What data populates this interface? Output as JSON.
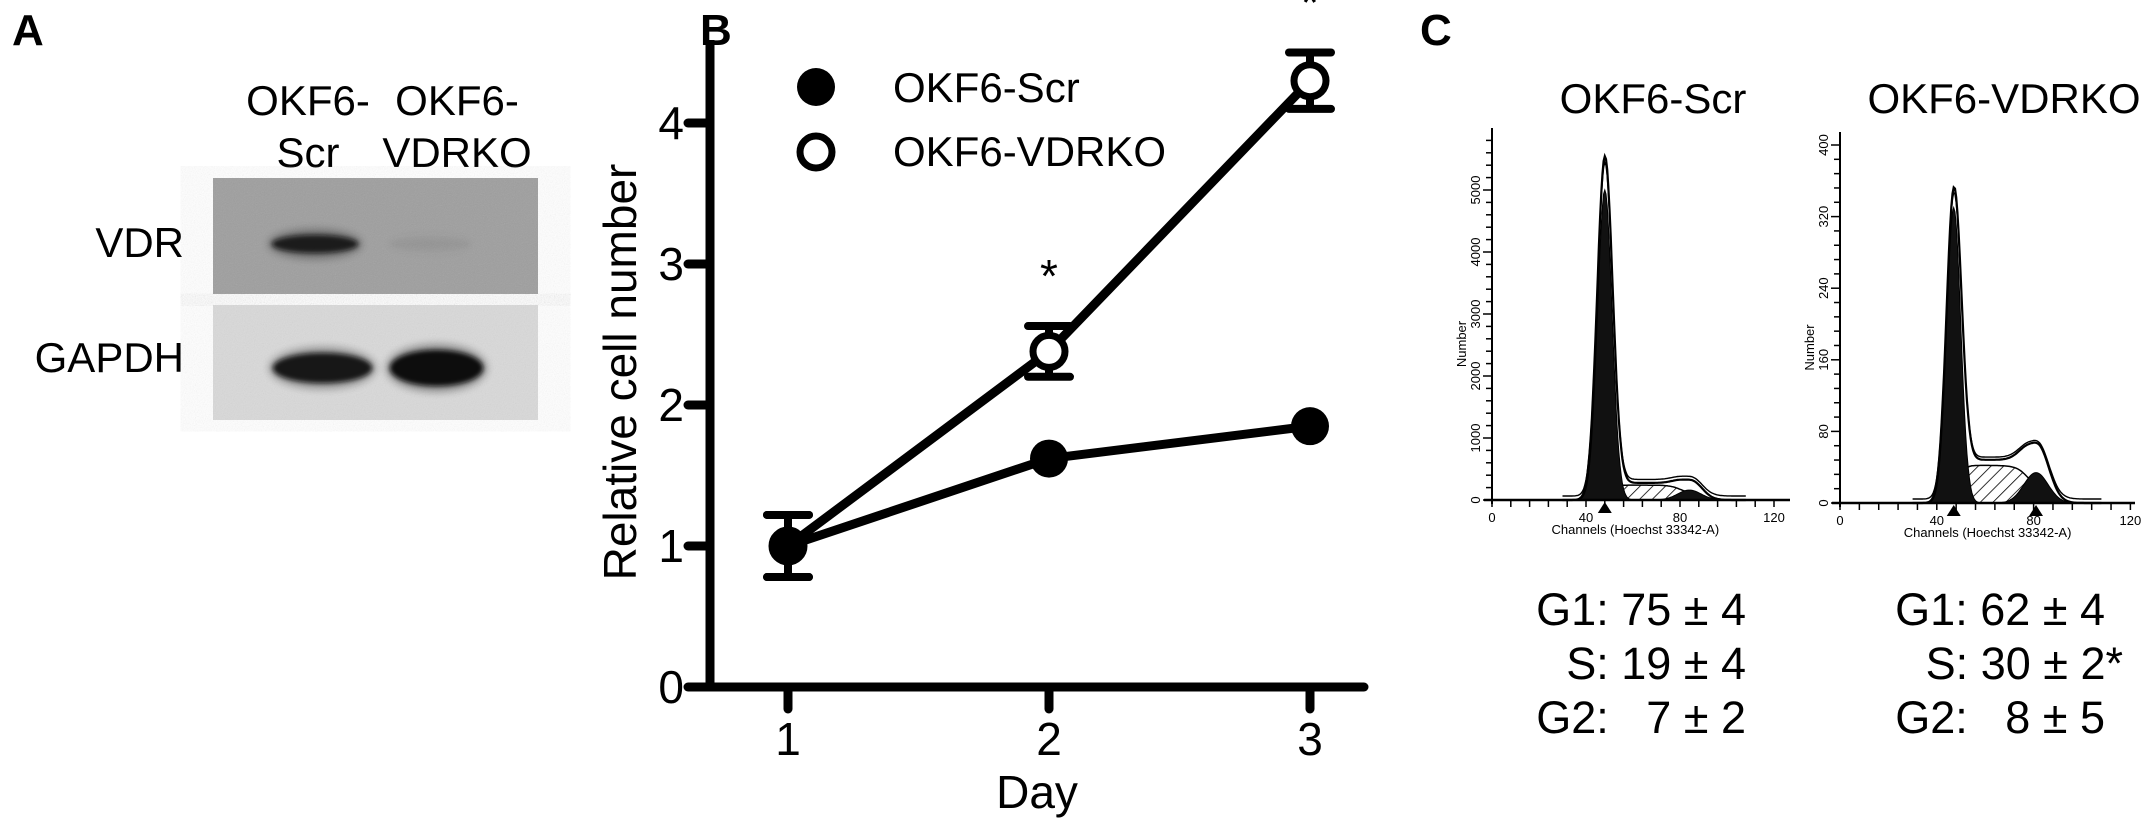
{
  "panels": {
    "a": "A",
    "b": "B",
    "c": "C"
  },
  "blot": {
    "lanes": [
      {
        "line1": "OKF6-",
        "line2": "Scr"
      },
      {
        "line1": "OKF6-",
        "line2": "VDRKO"
      }
    ],
    "rows": [
      {
        "label": "VDR",
        "band_intensity": [
          0.85,
          0.04
        ],
        "background": "#9e9e9e"
      },
      {
        "label": "GAPDH",
        "band_intensity": [
          0.92,
          1.0
        ],
        "background": "#d9d9d9"
      }
    ]
  },
  "chart_data": [
    {
      "type": "line",
      "title": "",
      "xlabel": "Day",
      "ylabel": "Relative cell number",
      "x": [
        1,
        2,
        3
      ],
      "xticks": [
        "1",
        "2",
        "3"
      ],
      "yticks": [
        "0",
        "1",
        "2",
        "3",
        "4"
      ],
      "xlim": [
        0.6,
        3.2
      ],
      "ylim": [
        0,
        4.65
      ],
      "grid": false,
      "legend": "top-left",
      "series": [
        {
          "name": "OKF6-Scr",
          "marker": "filled-circle",
          "values": [
            1.0,
            1.62,
            1.85
          ],
          "errors": [
            0.22,
            0.03,
            0.03
          ],
          "annotations": [
            "",
            "",
            ""
          ]
        },
        {
          "name": "OKF6-VDRKO",
          "marker": "open-circle",
          "values": [
            1.0,
            2.38,
            4.3
          ],
          "errors": [
            0.22,
            0.18,
            0.2
          ],
          "annotations": [
            "",
            "*",
            "*"
          ]
        }
      ]
    },
    {
      "type": "histogram",
      "title": "OKF6-Scr",
      "xlabel": "Channels (Hoechst 33342-A)",
      "ylabel": "Number",
      "xticks": [
        "0",
        "40",
        "80",
        "120"
      ],
      "yticks": [
        "0",
        "1000",
        "2000",
        "3000",
        "4000",
        "5000"
      ],
      "xlim": [
        0,
        127
      ],
      "ylim": [
        0,
        5800
      ],
      "g1_peak": {
        "channel": 48,
        "count": 5000,
        "total_count": 5500,
        "width": 3.1
      },
      "s_phase_level": 240,
      "g2_peak": {
        "channel": 84,
        "count": 160,
        "total_count": 320,
        "width": 5
      },
      "peak_markers": [
        48
      ],
      "stats": [
        "G1: 75 ± 4",
        "S: 19 ± 4",
        "G2:   7 ± 2"
      ]
    },
    {
      "type": "histogram",
      "title": "OKF6-VDRKO",
      "xlabel": "Channels (Hoechst 33342-A)",
      "ylabel": "Number",
      "xticks": [
        "0",
        "40",
        "80",
        "120"
      ],
      "yticks": [
        "0",
        "80",
        "160",
        "240",
        "320",
        "400"
      ],
      "xlim": [
        0,
        122
      ],
      "ylim": [
        0,
        415
      ],
      "g1_peak": {
        "channel": 47,
        "count": 330,
        "total_count": 345,
        "width": 2.9
      },
      "s_phase_level": 42,
      "g2_peak": {
        "channel": 81,
        "count": 34,
        "total_count": 66,
        "width": 5
      },
      "peak_markers": [
        47,
        81
      ],
      "stats": [
        "G1: 62 ± 4",
        "S: 30 ± 2*",
        "G2:   8 ± 5"
      ]
    }
  ]
}
